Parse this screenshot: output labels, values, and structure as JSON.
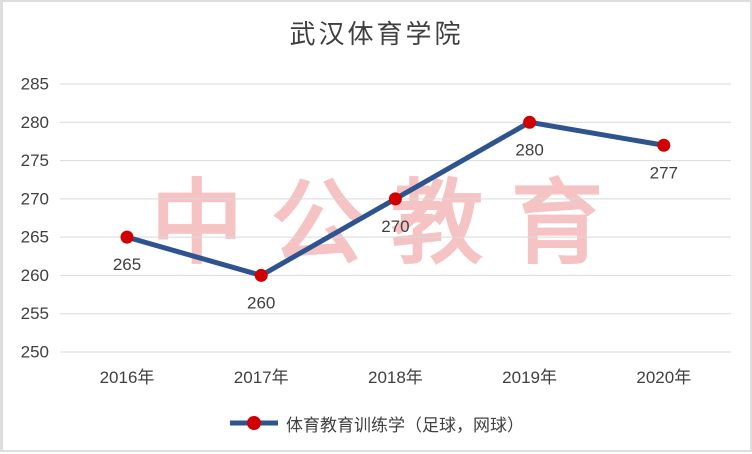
{
  "title": "武汉体育学院",
  "watermark": {
    "text": "中公教育",
    "color": "#F5C3C3"
  },
  "legend": {
    "label": "体育教育训练学（足球，网球）"
  },
  "chart_data": {
    "type": "line",
    "title": "武汉体育学院",
    "categories": [
      "2016年",
      "2017年",
      "2018年",
      "2019年",
      "2020年"
    ],
    "series": [
      {
        "name": "体育教育训练学（足球，网球）",
        "values": [
          265,
          260,
          270,
          280,
          277
        ]
      }
    ],
    "data_labels": [
      265,
      260,
      270,
      280,
      277
    ],
    "xlabel": "",
    "ylabel": "",
    "ylim": [
      250,
      285
    ],
    "yticks": [
      250,
      255,
      260,
      265,
      270,
      275,
      280,
      285
    ],
    "grid": true,
    "legend_position": "bottom",
    "colors": {
      "line": "#2E5490",
      "marker": "#D00000",
      "grid": "#D9D9D9",
      "tick_text": "#404040",
      "label_text": "#404040",
      "title_text": "#3F3F3F"
    }
  }
}
